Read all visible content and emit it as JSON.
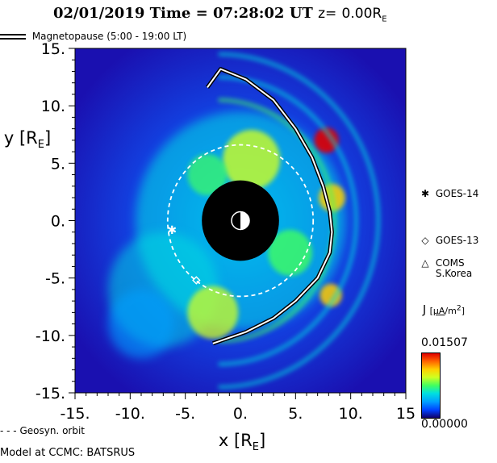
{
  "header": {
    "date": "02/01/2019",
    "time_label": "Time =",
    "time": "07:28:02",
    "time_unit": "UT",
    "z_label": "z=",
    "z_value": "0.00R",
    "z_sub": "E"
  },
  "legend": {
    "magnetopause": "Magnetopause (5:00 - 19:00 LT)",
    "geosyn": "Geosyn. orbit"
  },
  "footer": {
    "model": "Model at CCMC: BATSRUS"
  },
  "satellites": [
    {
      "symbol": "✱",
      "name": "GOES-14",
      "name2": ""
    },
    {
      "symbol": "◇",
      "name": "GOES-13",
      "name2": ""
    },
    {
      "symbol": "△",
      "name": "COMS",
      "name2": "S.Korea"
    }
  ],
  "colorbar": {
    "label": "J",
    "unit_num": "μA",
    "unit_den": "m",
    "unit_exp": "2",
    "max": "0.01507",
    "min": "0.00000",
    "colors": [
      "#10006a",
      "#0040ff",
      "#00a0ff",
      "#00e0e0",
      "#40ff60",
      "#d0ff20",
      "#ffd000",
      "#ff6000",
      "#e00000"
    ]
  },
  "chart_data": {
    "type": "heatmap",
    "title": "02/01/2019 Time = 07:28:02 UT z= 0.00RE",
    "xlabel": "x [RE]",
    "ylabel": "y [RE]",
    "xlim": [
      -15,
      15
    ],
    "ylim": [
      -15,
      15
    ],
    "xticks": [
      "-15.",
      "-10.",
      "-5.",
      "0.",
      "5.",
      "10.",
      "15"
    ],
    "yticks": [
      "15.",
      "10.",
      "5.",
      "0.",
      "-5.",
      "-10.",
      "-15."
    ],
    "variable": "J",
    "value_range": [
      0.0,
      0.01507
    ],
    "inner_boundary_radius_RE": 3.5,
    "geosynchronous_orbit_radius_RE": 6.6,
    "magnetopause": {
      "x": [
        -3.0,
        -1.8,
        0.5,
        3.0,
        5.0,
        6.5,
        7.5,
        8.1,
        8.3,
        8.1,
        7.0,
        5.0,
        3.0,
        0.5,
        -2.5
      ],
      "y": [
        11.6,
        13.2,
        12.3,
        10.5,
        8.0,
        5.5,
        3.0,
        0.8,
        -1.0,
        -2.8,
        -5.0,
        -7.0,
        -8.5,
        -9.7,
        -10.7
      ]
    },
    "satellites": [
      {
        "name": "GOES-14",
        "x": -6.2,
        "y": -0.8
      },
      {
        "name": "GOES-13",
        "x": -4.0,
        "y": -5.2
      }
    ]
  }
}
